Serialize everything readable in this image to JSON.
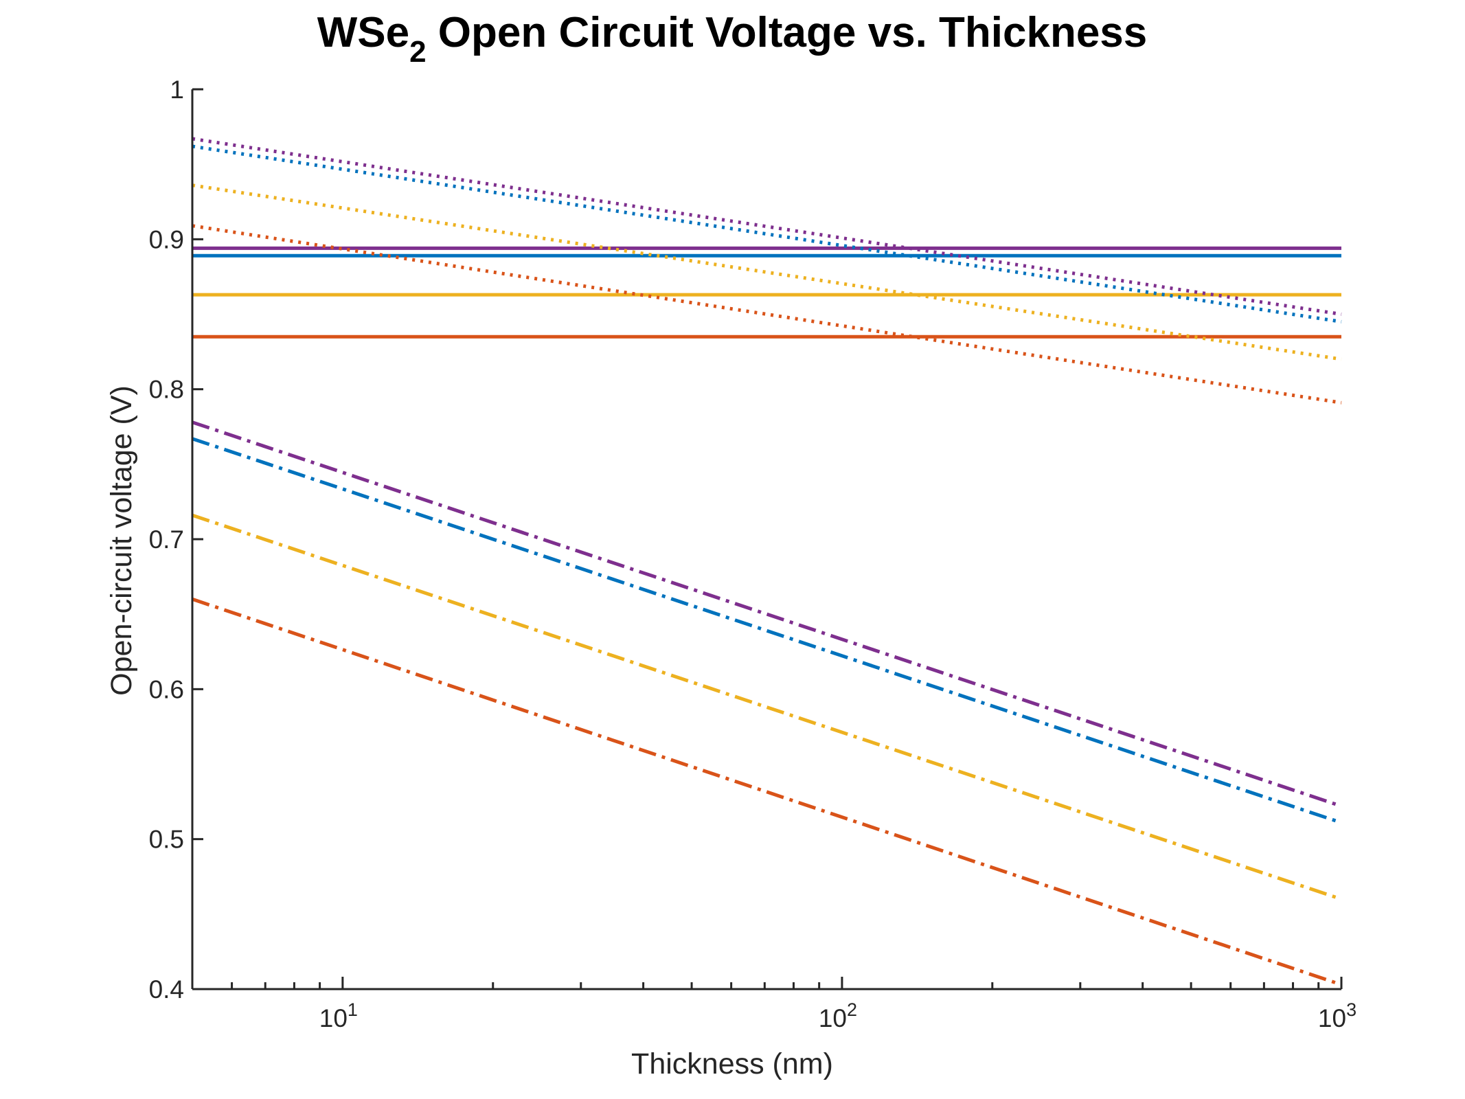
{
  "chart_data": {
    "type": "line",
    "title": {
      "main": "WSe",
      "subscript": "2",
      "rest": " Open Circuit Voltage vs. Thickness"
    },
    "xlabel": "Thickness (nm)",
    "ylabel": "Open-circuit voltage (V)",
    "xscale": "log",
    "xlim": [
      5,
      1000
    ],
    "ylim": [
      0.4,
      1.0
    ],
    "grid": false,
    "legend": "none",
    "x_ticks": [
      {
        "value": 10,
        "base": "10",
        "exp": "1"
      },
      {
        "value": 100,
        "base": "10",
        "exp": "2"
      },
      {
        "value": 1000,
        "base": "10",
        "exp": "3"
      }
    ],
    "y_ticks": [
      {
        "value": 0.4,
        "label": "0.4"
      },
      {
        "value": 0.5,
        "label": "0.5"
      },
      {
        "value": 0.6,
        "label": "0.6"
      },
      {
        "value": 0.7,
        "label": "0.7"
      },
      {
        "value": 0.8,
        "label": "0.8"
      },
      {
        "value": 0.9,
        "label": "0.9"
      },
      {
        "value": 1.0,
        "label": "1"
      }
    ],
    "series": [
      {
        "color": "#7E2F8E",
        "style": "solid",
        "x": [
          5,
          1000
        ],
        "y": [
          0.894,
          0.894
        ]
      },
      {
        "color": "#0072BD",
        "style": "solid",
        "x": [
          5,
          1000
        ],
        "y": [
          0.889,
          0.889
        ]
      },
      {
        "color": "#EDB120",
        "style": "solid",
        "x": [
          5,
          1000
        ],
        "y": [
          0.863,
          0.863
        ]
      },
      {
        "color": "#D95319",
        "style": "solid",
        "x": [
          5,
          1000
        ],
        "y": [
          0.835,
          0.835
        ]
      },
      {
        "color": "#7E2F8E",
        "style": "dotted",
        "x": [
          5,
          1000
        ],
        "y": [
          0.967,
          0.85
        ]
      },
      {
        "color": "#0072BD",
        "style": "dotted",
        "x": [
          5,
          1000
        ],
        "y": [
          0.962,
          0.845
        ]
      },
      {
        "color": "#EDB120",
        "style": "dotted",
        "x": [
          5,
          1000
        ],
        "y": [
          0.936,
          0.82
        ]
      },
      {
        "color": "#D95319",
        "style": "dotted",
        "x": [
          5,
          1000
        ],
        "y": [
          0.909,
          0.791
        ]
      },
      {
        "color": "#7E2F8E",
        "style": "dashdot",
        "x": [
          5,
          1000
        ],
        "y": [
          0.778,
          0.522
        ]
      },
      {
        "color": "#0072BD",
        "style": "dashdot",
        "x": [
          5,
          1000
        ],
        "y": [
          0.767,
          0.511
        ]
      },
      {
        "color": "#EDB120",
        "style": "dashdot",
        "x": [
          5,
          1000
        ],
        "y": [
          0.716,
          0.46
        ]
      },
      {
        "color": "#D95319",
        "style": "dashdot",
        "x": [
          5,
          1000
        ],
        "y": [
          0.66,
          0.403
        ]
      }
    ]
  }
}
